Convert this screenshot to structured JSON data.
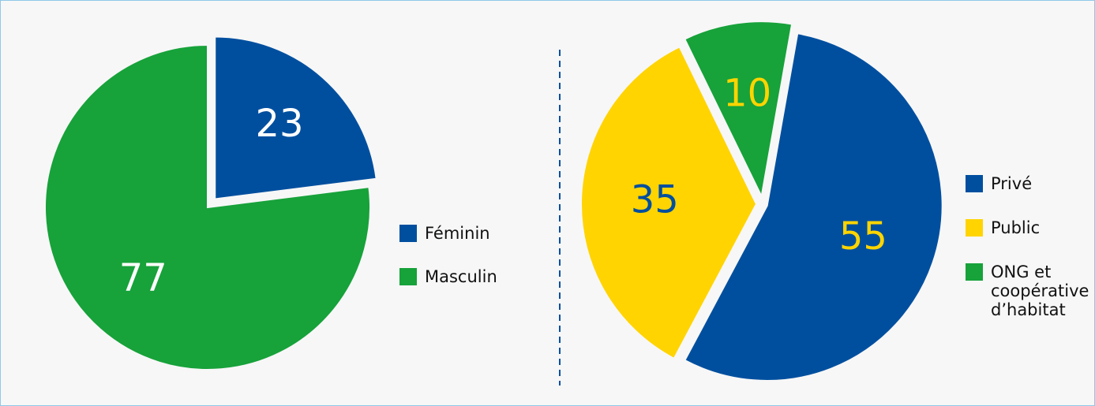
{
  "chart_data": [
    {
      "type": "pie",
      "categories": [
        "Féminin",
        "Masculin"
      ],
      "values": [
        23,
        77
      ],
      "colors": [
        "#004f9f",
        "#17a23a"
      ],
      "label_colors": [
        "#ffffff",
        "#ffffff"
      ]
    },
    {
      "type": "pie",
      "categories": [
        "Privé",
        "Public",
        "ONG et coopérative d’habitat"
      ],
      "values": [
        55,
        35,
        10
      ],
      "colors": [
        "#004f9f",
        "#ffd400",
        "#17a23a"
      ],
      "label_colors": [
        "#ffd400",
        "#004f9f",
        "#ffd400"
      ]
    }
  ]
}
